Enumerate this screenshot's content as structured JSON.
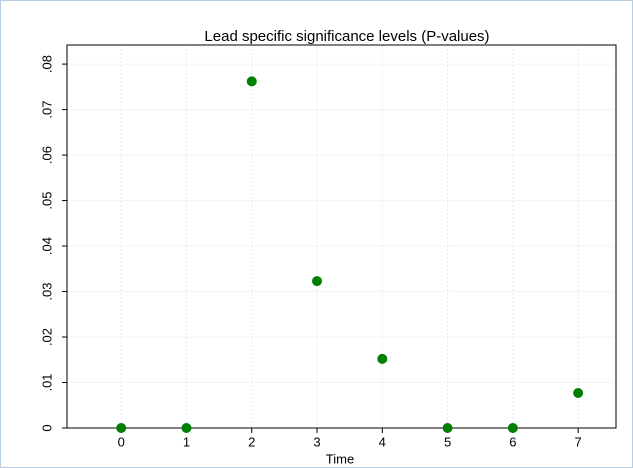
{
  "chart_data": {
    "type": "scatter",
    "title": "Lead specific significance levels (P-values)",
    "x_label": "Time",
    "x": [
      0,
      1,
      2,
      3,
      4,
      5,
      6,
      7
    ],
    "series": [
      {
        "color": "#007f00",
        "values": [
          0,
          0,
          0.0762,
          0.0323,
          0.0152,
          0,
          0,
          0.0077
        ]
      }
    ],
    "xlim": [
      -0.83,
      7.58
    ],
    "xticks": [
      0,
      1,
      2,
      3,
      4,
      5,
      6,
      7
    ],
    "ylim": [
      0,
      0.0842
    ],
    "yticks": [
      0,
      {
        "value": 0.01,
        "label": ".01"
      },
      {
        "value": 0.02,
        "label": ".02"
      },
      {
        "value": 0.03,
        "label": ".03"
      },
      {
        "value": 0.04,
        "label": ".04"
      },
      {
        "value": 0.05,
        "label": ".05"
      },
      {
        "value": 0.06,
        "label": ".06"
      },
      {
        "value": 0.07,
        "label": ".07"
      },
      {
        "value": 0.08,
        "label": ".08"
      }
    ],
    "grid": true
  }
}
